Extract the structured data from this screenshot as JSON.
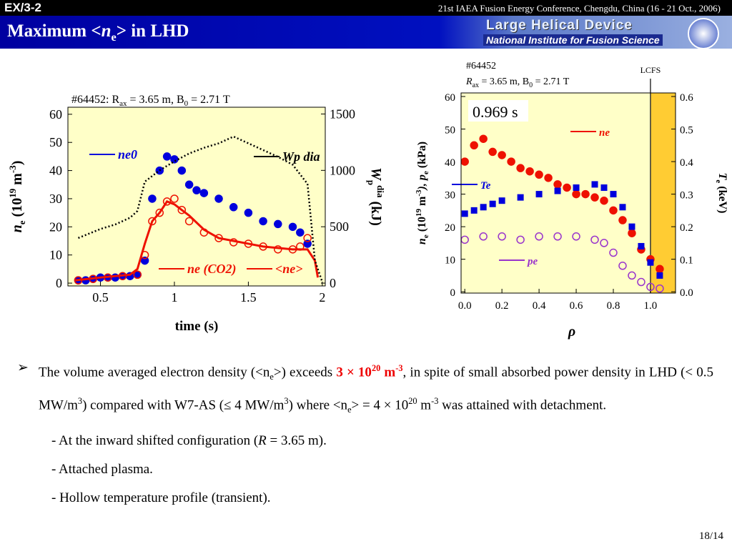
{
  "header": {
    "code": "EX/3-2",
    "conference": "21st IAEA Fusion Energy Conference, Chengdu, China (16 - 21 Oct., 2006)",
    "title": [
      "Maximum <",
      "n",
      "e",
      "> in LHD"
    ],
    "logo_line1": "Large Helical Device",
    "logo_line2": "National Institute for Fusion Science"
  },
  "chart_data": [
    {
      "type": "scatter",
      "title": [
        "#64452: R",
        "ax",
        " = 3.65 m, B",
        "0",
        " = 2.71 T"
      ],
      "x_label": "time (s)",
      "y_label": [
        "n",
        "e",
        " (10",
        "19",
        " m",
        "-3",
        ")"
      ],
      "y2_label": [
        "W",
        "p",
        "dia",
        " (kJ)"
      ],
      "xlim": [
        0.28,
        2.02
      ],
      "xticks": [
        0.5,
        1,
        1.5,
        2
      ],
      "ylim": [
        -1,
        62.5
      ],
      "yticks": [
        0,
        10,
        20,
        30,
        40,
        50,
        60
      ],
      "y2lim": [
        -25,
        1560
      ],
      "y2ticks": [
        0,
        500,
        1000,
        1500
      ],
      "series": [
        {
          "name": "ne0",
          "color": "#0000dd",
          "marker": "dot",
          "x": [
            0.35,
            0.4,
            0.45,
            0.5,
            0.55,
            0.6,
            0.65,
            0.7,
            0.75,
            0.8,
            0.85,
            0.9,
            0.95,
            1.0,
            1.05,
            1.1,
            1.15,
            1.2,
            1.3,
            1.4,
            1.5,
            1.6,
            1.7,
            1.8,
            1.85,
            1.9
          ],
          "values": [
            1,
            1,
            1.5,
            2,
            2,
            2,
            2.5,
            2.5,
            3,
            8,
            30,
            40,
            45,
            44,
            40,
            35,
            33,
            32,
            30,
            27,
            25,
            22,
            21,
            20,
            18,
            14
          ]
        },
        {
          "name": "<ne>",
          "color": "#ee1100",
          "marker": "open",
          "x": [
            0.35,
            0.45,
            0.55,
            0.65,
            0.75,
            0.8,
            0.85,
            0.9,
            0.95,
            1.0,
            1.05,
            1.1,
            1.2,
            1.3,
            1.4,
            1.5,
            1.6,
            1.7,
            1.8,
            1.85,
            1.9
          ],
          "values": [
            1,
            1.5,
            2,
            2.5,
            3,
            10,
            22,
            25,
            29,
            30,
            26,
            22,
            18,
            16,
            14.5,
            14,
            13,
            12,
            12,
            13,
            16
          ]
        },
        {
          "name": "ne (CO2)",
          "color": "#ee1100",
          "marker": "line",
          "x": [
            0.33,
            0.5,
            0.7,
            0.75,
            0.8,
            0.85,
            0.9,
            0.95,
            1.0,
            1.1,
            1.2,
            1.3,
            1.4,
            1.5,
            1.6,
            1.7,
            1.8,
            1.9,
            1.95,
            1.97
          ],
          "values": [
            1,
            2,
            3,
            5,
            14,
            22,
            25,
            29,
            28,
            24,
            19,
            16,
            15,
            14,
            13,
            12.5,
            12,
            12,
            8,
            2
          ]
        },
        {
          "name": "Wp dia",
          "color": "#000000",
          "marker": "dotted",
          "axis": "y2",
          "x": [
            0.35,
            0.5,
            0.6,
            0.7,
            0.75,
            0.8,
            0.9,
            1.0,
            1.1,
            1.2,
            1.3,
            1.4,
            1.5,
            1.6,
            1.7,
            1.8,
            1.9,
            1.95,
            2.0
          ],
          "values": [
            400,
            480,
            520,
            580,
            640,
            900,
            1000,
            1080,
            1150,
            1200,
            1240,
            1300,
            1240,
            1180,
            1120,
            1050,
            880,
            200,
            10
          ]
        }
      ]
    },
    {
      "type": "scatter",
      "title": "#64452",
      "subtitle": [
        "R",
        "ax",
        " = 3.65 m, B",
        "0",
        " = 2.71 T"
      ],
      "x_label": "ρ",
      "y_label": [
        "n",
        "e",
        " (10",
        "19",
        " m",
        "-3",
        "), p",
        "e",
        " (kPa)"
      ],
      "y2_label": [
        "T",
        "e",
        " (keV)"
      ],
      "annotations": [
        {
          "text": "0.969 s"
        },
        {
          "text": "LCFS",
          "x": 1.0
        }
      ],
      "xlim": [
        -0.02,
        1.135
      ],
      "xticks": [
        {
          "value": 0,
          "label": "0.0"
        },
        0.2,
        0.4,
        0.6,
        0.8,
        {
          "value": 1,
          "label": "1.0"
        }
      ],
      "ylim": [
        -0.4,
        61.1
      ],
      "yticks": [
        0,
        10,
        20,
        30,
        40,
        50,
        60
      ],
      "y2lim": [
        -0.004,
        0.611
      ],
      "y2ticks": [
        {
          "value": 0,
          "label": "0.0"
        },
        0.1,
        0.2,
        0.3,
        0.4,
        0.5,
        0.6
      ],
      "series": [
        {
          "name": "ne",
          "color": "#ee1100",
          "marker": "dot",
          "x": [
            0.0,
            0.05,
            0.1,
            0.15,
            0.2,
            0.25,
            0.3,
            0.35,
            0.4,
            0.45,
            0.5,
            0.55,
            0.6,
            0.65,
            0.7,
            0.75,
            0.8,
            0.85,
            0.9,
            0.95,
            1.0,
            1.05
          ],
          "values": [
            40,
            45,
            47,
            43,
            42,
            40,
            38,
            37,
            36,
            35,
            33,
            32,
            30,
            30,
            29,
            28,
            25,
            22,
            18,
            13,
            10,
            7
          ]
        },
        {
          "name": "Te",
          "color": "#0000dd",
          "marker": "square",
          "axis": "y2",
          "x": [
            0.0,
            0.05,
            0.1,
            0.15,
            0.2,
            0.3,
            0.4,
            0.5,
            0.6,
            0.7,
            0.75,
            0.8,
            0.85,
            0.9,
            0.95,
            1.0,
            1.05
          ],
          "values": [
            0.24,
            0.25,
            0.26,
            0.27,
            0.28,
            0.29,
            0.3,
            0.31,
            0.32,
            0.33,
            0.32,
            0.3,
            0.26,
            0.2,
            0.14,
            0.09,
            0.05
          ]
        },
        {
          "name": "pe",
          "color": "#9933cc",
          "marker": "open",
          "x": [
            0.0,
            0.1,
            0.2,
            0.3,
            0.4,
            0.5,
            0.6,
            0.7,
            0.75,
            0.8,
            0.85,
            0.9,
            0.95,
            1.0,
            1.05
          ],
          "values": [
            16,
            17,
            17,
            16,
            17,
            17,
            17,
            16,
            15,
            12,
            8,
            5,
            3,
            1.5,
            1
          ]
        }
      ]
    }
  ],
  "bullet": [
    "The volume averaged electron density (<n",
    "e",
    ">) exceeds ",
    "3 × 10",
    "20",
    " m",
    "-3",
    ", in spite of small absorbed power density in LHD (< 0.5 MW/m",
    "3",
    ") compared with W7-AS (≤ 4 MW/m",
    "3",
    ") where <n",
    "e",
    "> = 4 × 10",
    "20",
    " m",
    "-3",
    " was attained with detachment."
  ],
  "sub_items": [
    [
      "-  At the inward shifted configuration (",
      "R",
      " = 3.65 m)."
    ],
    [
      "-  Attached plasma."
    ],
    [
      "-  Hollow temperature profile (transient)."
    ]
  ],
  "page": "18/14"
}
